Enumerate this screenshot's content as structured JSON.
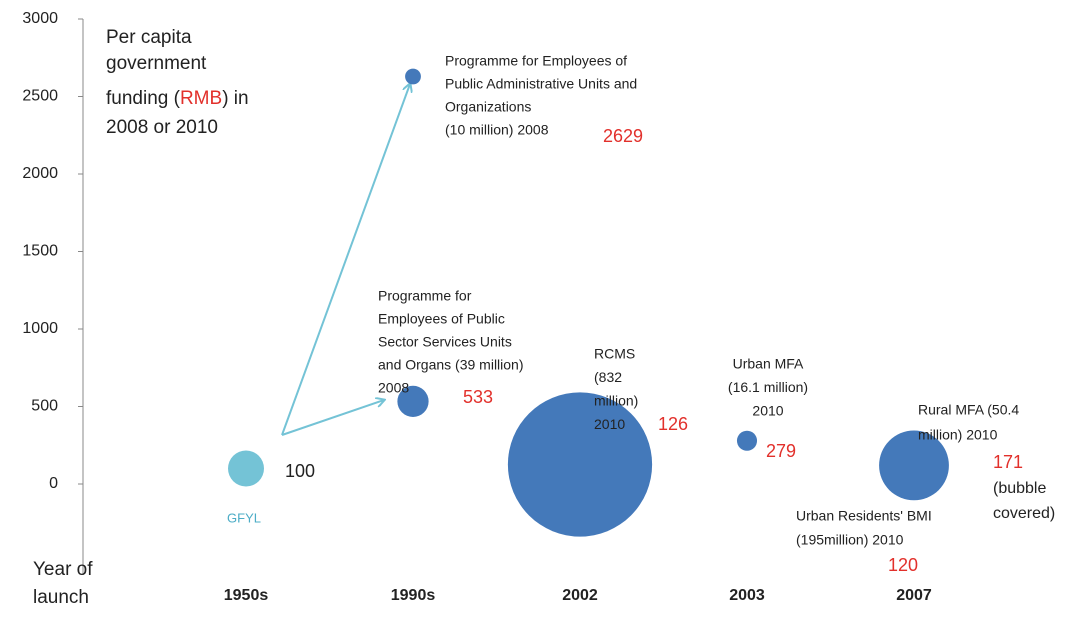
{
  "chart_data": {
    "type": "bubble",
    "y_title": [
      "Per capita",
      "government",
      "funding (",
      "RMB",
      ") in",
      "2008 or 2010"
    ],
    "x_title": [
      "Year of",
      "launch"
    ],
    "categories": [
      "1950s",
      "1990s",
      "2002",
      "2003",
      "2007"
    ],
    "ylim": [
      -600,
      3000
    ],
    "yticks": [
      0,
      500,
      1000,
      1500,
      2000,
      2500,
      3000
    ],
    "color": "#4479ba",
    "points": [
      {
        "category": "1950s",
        "name": [
          "GFYL"
        ],
        "value": 100,
        "size": null,
        "color": "#74c3d6"
      },
      {
        "category": "1990s",
        "name": [
          "Programme for Employees of",
          "Public Administrative Units and",
          "Organizations",
          "(10 million) 2008"
        ],
        "value": 2629,
        "size": 10
      },
      {
        "category": "1990s",
        "name": [
          "Programme for",
          "Employees of Public",
          "Sector Services Units",
          "and Organs (39 million)",
          "2008"
        ],
        "value": 533,
        "size": 39
      },
      {
        "category": "2002",
        "name": [
          "RCMS",
          "(832",
          "million)",
          "2010"
        ],
        "value": 126,
        "size": 832
      },
      {
        "category": "2003",
        "name": [
          "Urban MFA",
          "(16.1 million)",
          "2010"
        ],
        "value": 279,
        "size": 16.1
      },
      {
        "category": "2007",
        "name": [
          "Rural MFA (50.4",
          "million) 2010"
        ],
        "value": 171,
        "size": 50.4,
        "note": [
          "(bubble",
          "covered)"
        ]
      },
      {
        "category": "2007",
        "name": [
          "Urban Residents' BMI",
          "(195million) 2010"
        ],
        "value": 120,
        "size": 195
      }
    ]
  }
}
